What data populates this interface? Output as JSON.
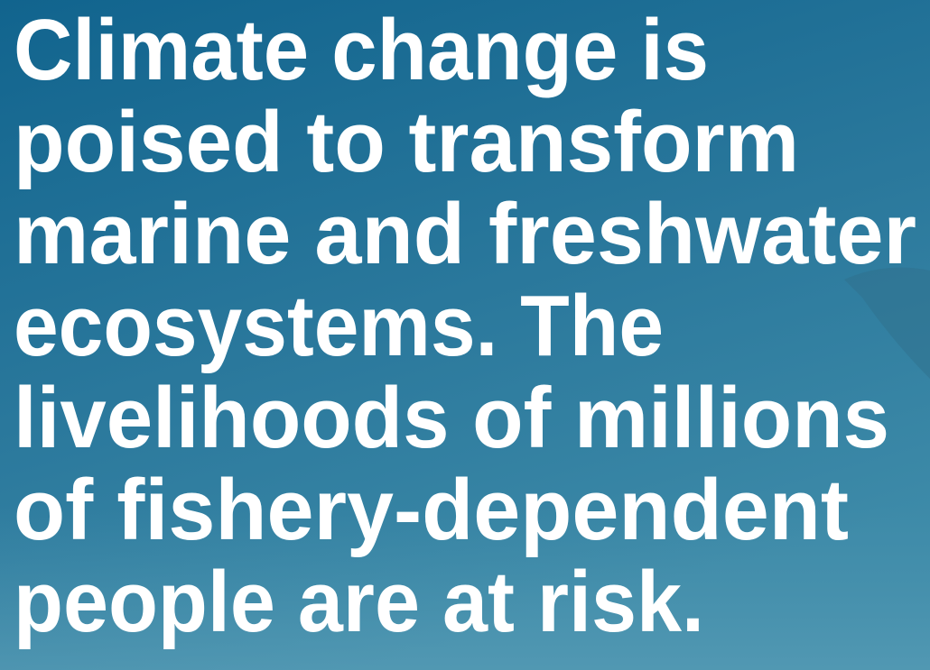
{
  "headline": {
    "lines": [
      "Climate change is",
      "poised to transform",
      "marine and freshwater",
      "ecosystems. The",
      "livelihoods of millions",
      "of fishery-dependent",
      "people are at risk."
    ]
  }
}
